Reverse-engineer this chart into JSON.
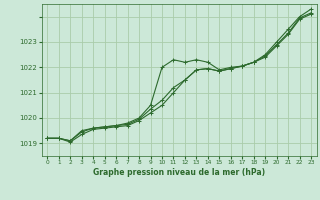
{
  "title": "Graphe pression niveau de la mer (hPa)",
  "background_color": "#cce8d8",
  "grid_color": "#aaccaa",
  "line_color": "#2d6a2d",
  "marker_color": "#2d6a2d",
  "xlim": [
    -0.5,
    23.5
  ],
  "ylim": [
    1018.5,
    1024.5
  ],
  "yticks": [
    1019,
    1020,
    1021,
    1022,
    1023,
    1024
  ],
  "ytick_labels": [
    "1019",
    "1020",
    "1021",
    "1022",
    "1023",
    ""
  ],
  "xticks": [
    0,
    1,
    2,
    3,
    4,
    5,
    6,
    7,
    8,
    9,
    10,
    11,
    12,
    13,
    14,
    15,
    16,
    17,
    18,
    19,
    20,
    21,
    22,
    23
  ],
  "series1": [
    1019.2,
    1019.2,
    1019.1,
    1019.5,
    1019.6,
    1019.65,
    1019.7,
    1019.8,
    1020.0,
    1020.5,
    1022.0,
    1022.3,
    1022.2,
    1022.3,
    1022.2,
    1021.9,
    1022.0,
    1022.05,
    1022.2,
    1022.5,
    1023.0,
    1023.5,
    1024.0,
    1024.3
  ],
  "series2": [
    1019.2,
    1019.2,
    1019.05,
    1019.35,
    1019.55,
    1019.6,
    1019.65,
    1019.7,
    1019.9,
    1020.2,
    1020.5,
    1021.0,
    1021.5,
    1021.9,
    1021.95,
    1021.85,
    1021.95,
    1022.05,
    1022.2,
    1022.4,
    1022.85,
    1023.3,
    1023.9,
    1024.1
  ],
  "series3": [
    1019.2,
    1019.2,
    1019.1,
    1019.45,
    1019.6,
    1019.65,
    1019.7,
    1019.75,
    1019.95,
    1020.35,
    1020.7,
    1021.2,
    1021.5,
    1021.9,
    1021.95,
    1021.85,
    1021.95,
    1022.05,
    1022.2,
    1022.45,
    1022.9,
    1023.35,
    1023.95,
    1024.15
  ]
}
